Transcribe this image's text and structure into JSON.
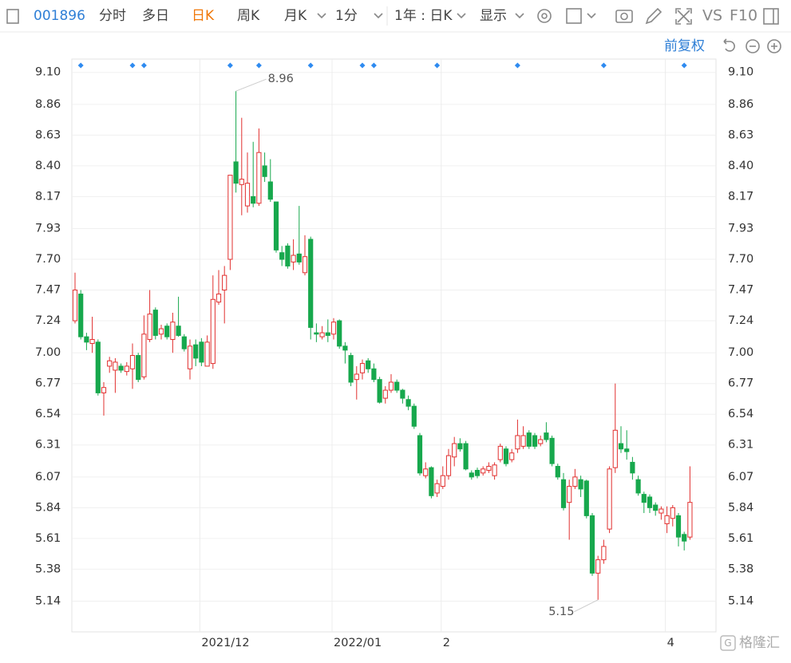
{
  "toolbar": {
    "code": "001896",
    "tabs": [
      "分时",
      "多日",
      "日K",
      "周K",
      "月K"
    ],
    "interval": "1分",
    "range": "1年 : 日K",
    "display": "显示",
    "vs": "VS",
    "f10": "F10",
    "adjust": "前复权",
    "watermark": "格隆汇"
  },
  "chart_data": {
    "type": "candlestick",
    "categories": [
      null,
      null,
      null,
      null,
      null,
      null,
      null,
      null,
      null,
      null,
      null,
      null,
      null,
      null,
      null,
      null,
      null,
      null,
      null,
      null,
      null,
      null,
      "2021/12",
      null,
      null,
      null,
      null,
      null,
      null,
      null,
      null,
      null,
      null,
      null,
      null,
      null,
      null,
      null,
      null,
      null,
      null,
      null,
      null,
      null,
      null,
      "2022/01",
      null,
      null,
      null,
      null,
      null,
      null,
      null,
      null,
      null,
      null,
      null,
      null,
      null,
      null,
      null,
      null,
      null,
      null,
      "2",
      null,
      null,
      null,
      null,
      null,
      null,
      null,
      null,
      null,
      null,
      null,
      null,
      null,
      null,
      null,
      null,
      null,
      null,
      null,
      null,
      null,
      null,
      null,
      null,
      null,
      null,
      null,
      null,
      null,
      null,
      null,
      null,
      null,
      null,
      null,
      null,
      null,
      null,
      "4",
      null,
      null,
      null,
      null
    ],
    "open": [
      7.24,
      7.44,
      7.12,
      7.07,
      7.08,
      6.7,
      6.9,
      6.87,
      6.9,
      6.86,
      6.88,
      6.98,
      6.82,
      7.1,
      7.32,
      7.14,
      7.2,
      7.1,
      7.2,
      7.12,
      6.88,
      7.06,
      7.08,
      6.9,
      6.92,
      7.38,
      7.47,
      7.7,
      8.43,
      8.26,
      8.1,
      8.17,
      8.12,
      8.4,
      8.28,
      8.13,
      7.75,
      7.8,
      7.68,
      7.74,
      7.6,
      7.85,
      7.15,
      7.12,
      7.15,
      7.14,
      7.24,
      7.05,
      6.98,
      6.8,
      6.85,
      6.94,
      6.88,
      6.8,
      6.66,
      6.72,
      6.78,
      6.72,
      6.65,
      6.6,
      6.38,
      6.08,
      6.14,
      5.95,
      6.0,
      6.08,
      6.22,
      6.32,
      6.32,
      6.1,
      6.12,
      6.1,
      6.12,
      6.08,
      6.2,
      6.28,
      6.2,
      6.28,
      6.3,
      6.4,
      6.38,
      6.32,
      6.4,
      6.36,
      6.15,
      6.05,
      5.88,
      6.0,
      6.05,
      6.04,
      5.78,
      5.35,
      5.45,
      5.68,
      6.14,
      6.32,
      6.28,
      6.18,
      6.05,
      5.94,
      5.92,
      5.86,
      5.8,
      5.72,
      5.76,
      5.78,
      5.64,
      5.62
    ],
    "high": [
      7.6,
      7.47,
      7.15,
      7.27,
      7.1,
      6.78,
      6.97,
      6.96,
      6.92,
      6.93,
      7.07,
      7.0,
      7.28,
      7.47,
      7.34,
      7.21,
      7.22,
      7.3,
      7.42,
      7.14,
      7.1,
      7.1,
      7.11,
      7.13,
      7.58,
      7.62,
      7.65,
      8.33,
      8.96,
      8.76,
      8.5,
      8.58,
      8.68,
      8.5,
      8.45,
      8.13,
      7.8,
      7.82,
      7.85,
      8.1,
      7.88,
      7.87,
      7.22,
      7.2,
      7.25,
      7.26,
      7.25,
      7.08,
      7.0,
      6.9,
      6.95,
      6.96,
      6.92,
      6.82,
      6.75,
      6.84,
      6.8,
      6.73,
      6.68,
      6.62,
      6.4,
      6.18,
      6.15,
      6.05,
      6.15,
      6.28,
      6.37,
      6.36,
      6.34,
      6.12,
      6.14,
      6.15,
      6.18,
      6.18,
      6.32,
      6.3,
      6.28,
      6.5,
      6.45,
      6.42,
      6.4,
      6.38,
      6.48,
      6.38,
      6.17,
      6.1,
      6.05,
      6.13,
      6.08,
      6.05,
      5.8,
      5.48,
      5.6,
      6.15,
      6.77,
      6.45,
      6.42,
      6.22,
      6.08,
      5.96,
      5.94,
      5.88,
      5.85,
      5.85,
      5.86,
      5.8,
      5.66,
      6.15
    ],
    "low": [
      7.22,
      7.1,
      7.02,
      7.0,
      6.68,
      6.53,
      6.85,
      6.7,
      6.85,
      6.83,
      6.73,
      6.78,
      6.8,
      7.08,
      7.1,
      7.1,
      7.1,
      7.0,
      7.12,
      7.01,
      6.8,
      6.9,
      6.9,
      6.9,
      6.88,
      7.36,
      7.22,
      7.62,
      8.2,
      8.03,
      8.05,
      8.09,
      8.1,
      8.28,
      8.13,
      7.75,
      7.65,
      7.63,
      7.62,
      7.66,
      7.58,
      7.1,
      7.08,
      7.1,
      7.08,
      7.1,
      7.03,
      6.92,
      6.75,
      6.65,
      6.8,
      6.85,
      6.78,
      6.62,
      6.62,
      6.7,
      6.7,
      6.62,
      6.57,
      6.43,
      6.08,
      6.06,
      5.91,
      5.92,
      5.98,
      6.05,
      6.15,
      6.26,
      6.12,
      6.05,
      6.06,
      6.08,
      6.1,
      6.05,
      6.18,
      6.15,
      6.18,
      6.25,
      6.28,
      6.28,
      6.28,
      6.3,
      6.33,
      6.15,
      6.05,
      5.82,
      5.6,
      5.98,
      5.92,
      5.76,
      5.33,
      5.15,
      5.42,
      5.65,
      6.1,
      6.25,
      6.2,
      6.05,
      5.93,
      5.8,
      5.8,
      5.78,
      5.75,
      5.65,
      5.7,
      5.55,
      5.52,
      5.6
    ],
    "close": [
      7.47,
      7.12,
      7.08,
      7.1,
      6.7,
      6.74,
      6.94,
      6.93,
      6.87,
      6.9,
      6.98,
      6.8,
      7.14,
      7.29,
      7.13,
      7.18,
      7.12,
      7.23,
      7.13,
      7.03,
      7.05,
      6.96,
      6.93,
      7.08,
      7.4,
      7.44,
      7.58,
      8.33,
      8.27,
      8.3,
      8.27,
      8.12,
      8.5,
      8.32,
      8.15,
      7.77,
      7.7,
      7.65,
      7.73,
      7.68,
      7.72,
      7.19,
      7.14,
      7.15,
      7.13,
      7.23,
      7.05,
      7.02,
      6.78,
      6.84,
      6.92,
      6.88,
      6.8,
      6.63,
      6.72,
      6.78,
      6.72,
      6.66,
      6.6,
      6.45,
      6.1,
      6.13,
      5.93,
      6.02,
      6.08,
      6.23,
      6.32,
      6.28,
      6.13,
      6.07,
      6.08,
      6.13,
      6.15,
      6.16,
      6.3,
      6.17,
      6.25,
      6.38,
      6.38,
      6.3,
      6.3,
      6.35,
      6.35,
      6.17,
      6.07,
      5.84,
      6.0,
      6.07,
      5.98,
      5.78,
      5.35,
      5.45,
      5.55,
      6.13,
      6.42,
      6.28,
      6.26,
      6.1,
      5.95,
      5.88,
      5.84,
      5.82,
      5.83,
      5.78,
      5.84,
      5.62,
      5.59,
      5.88
    ],
    "up_color": "#e2302f",
    "down_color": "#17a84d",
    "ylim": [
      4.91,
      9.2
    ],
    "yticks": [
      {
        "value": 9.1,
        "label": "9.10"
      },
      8.86,
      8.63,
      {
        "value": 8.4,
        "label": "8.40"
      },
      8.17,
      7.93,
      {
        "value": 7.7,
        "label": "7.70"
      },
      7.47,
      7.24,
      {
        "value": 7,
        "label": "7.00"
      },
      6.77,
      6.54,
      6.31,
      6.07,
      5.84,
      5.61,
      5.38,
      5.14
    ],
    "annotations": [
      {
        "label": "8.96",
        "value": 8.96
      },
      {
        "label": "5.15",
        "value": 5.15
      }
    ],
    "event_markers": [
      1,
      10,
      12,
      27,
      32,
      41,
      50,
      52,
      63,
      77,
      92,
      106
    ],
    "event_color": "#2f8bf0",
    "grid": true
  }
}
